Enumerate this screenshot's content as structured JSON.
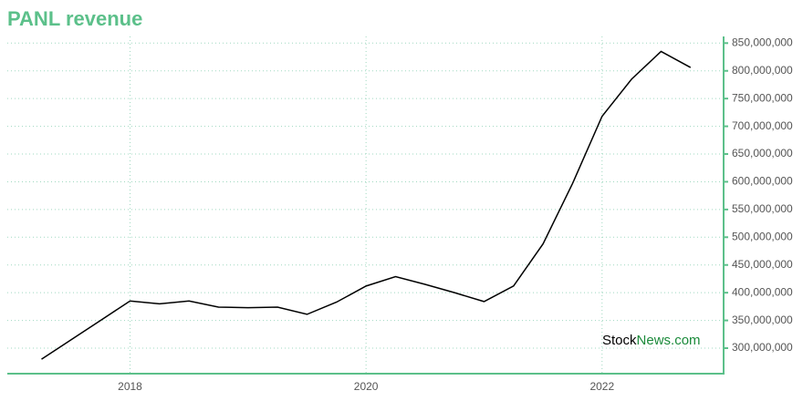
{
  "chart_data": {
    "type": "line",
    "title": "PANL revenue",
    "x": [
      2017.25,
      2017.5,
      2017.75,
      2018,
      2018.25,
      2018.5,
      2018.75,
      2019,
      2019.25,
      2019.5,
      2019.75,
      2020,
      2020.25,
      2020.5,
      2020.75,
      2021,
      2021.25,
      2021.5,
      2021.75,
      2022,
      2022.25,
      2022.5,
      2022.75
    ],
    "series": [
      {
        "name": "revenue",
        "color": "#000000",
        "values": [
          280000000,
          315000000,
          350000000,
          385000000,
          380000000,
          385000000,
          374000000,
          373000000,
          374000000,
          361000000,
          383000000,
          412000000,
          429000000,
          415000000,
          400000000,
          384000000,
          412000000,
          488000000,
          597000000,
          718000000,
          785000000,
          835000000,
          806000000
        ]
      }
    ],
    "xlim": [
      2016.96,
      2023.03
    ],
    "xticks": [
      2018,
      2020,
      2022
    ],
    "ylim": [
      254000000,
      862000000
    ],
    "yticks": [
      {
        "value": 300000000,
        "label": "300,000,000"
      },
      {
        "value": 350000000,
        "label": "350,000,000"
      },
      {
        "value": 400000000,
        "label": "400,000,000"
      },
      {
        "value": 450000000,
        "label": "450,000,000"
      },
      {
        "value": 500000000,
        "label": "500,000,000"
      },
      {
        "value": 550000000,
        "label": "550,000,000"
      },
      {
        "value": 600000000,
        "label": "600,000,000"
      },
      {
        "value": 650000000,
        "label": "650,000,000"
      },
      {
        "value": 700000000,
        "label": "700,000,000"
      },
      {
        "value": 750000000,
        "label": "750,000,000"
      },
      {
        "value": 800000000,
        "label": "800,000,000"
      },
      {
        "value": 850000000,
        "label": "850,000,000"
      }
    ],
    "grid": true,
    "axis_color": "#5cc08a",
    "watermark": [
      "Stock",
      "News.com"
    ]
  }
}
